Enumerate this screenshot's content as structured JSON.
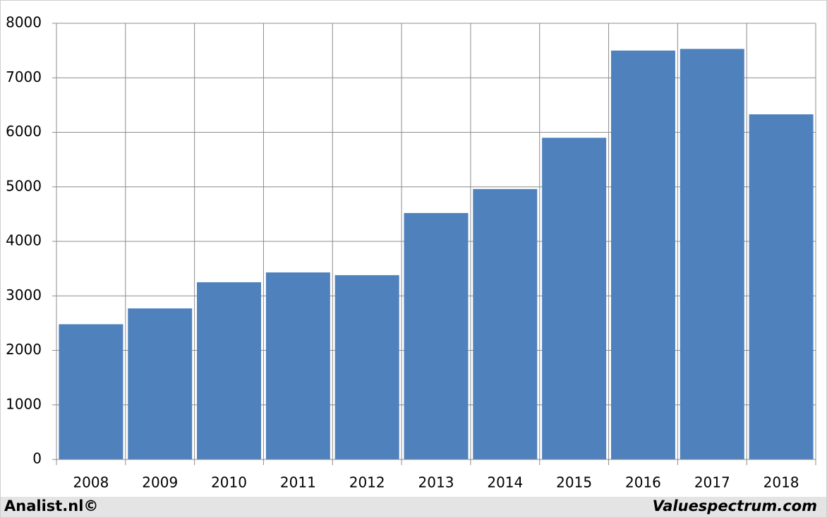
{
  "chart_data": {
    "type": "bar",
    "categories": [
      "2008",
      "2009",
      "2010",
      "2011",
      "2012",
      "2013",
      "2014",
      "2015",
      "2016",
      "2017",
      "2018"
    ],
    "values": [
      2480,
      2770,
      3250,
      3430,
      3380,
      4520,
      4960,
      5900,
      7500,
      7530,
      6330
    ],
    "color": "#4f81bd",
    "ylim": [
      0,
      8000
    ],
    "yticks": [
      0,
      1000,
      2000,
      3000,
      4000,
      5000,
      6000,
      7000,
      8000
    ],
    "grid": true,
    "credits": [
      "Analist.nl©",
      "Valuespectrum.com"
    ]
  }
}
